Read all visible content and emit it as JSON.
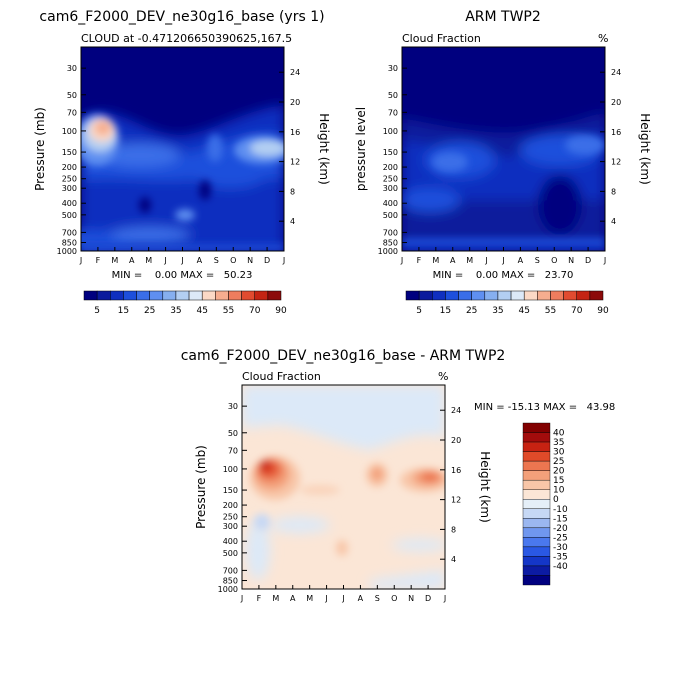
{
  "colors": {
    "seq": [
      "#00007f",
      "#0a1a9c",
      "#0f2fbf",
      "#1d4fdc",
      "#3a6ee8",
      "#5f8ff0",
      "#86afef",
      "#b3cff2",
      "#dce9f8",
      "#fbd9c6",
      "#f6ad8f",
      "#ee7d5e",
      "#e14b30",
      "#c42413",
      "#8c0a0a"
    ],
    "diff": [
      "#00007f",
      "#0c1ba3",
      "#1436c8",
      "#2a58e4",
      "#4a78ee",
      "#7097ef",
      "#9bb7f0",
      "#c6d8f5",
      "#e5eff8",
      "#fbe6d6",
      "#f8c6a8",
      "#f3a07a",
      "#ec7650",
      "#e04a29",
      "#c72212",
      "#a30c0c",
      "#820000"
    ]
  },
  "top_left": {
    "title": "cam6_F2000_DEV_ne30g16_base (yrs 1)",
    "subtitle": "CLOUD at -0.471206650390625,167.5",
    "ylabel_left": "Pressure (mb)",
    "ylabel_right": "Height (km)",
    "minmax": "MIN =    0.00 MAX =   50.23"
  },
  "top_right": {
    "title": "ARM TWP2",
    "subtitle": "Cloud Fraction",
    "units": "%",
    "ylabel_left": "pressure level",
    "ylabel_right": "Height (km)",
    "minmax": "MIN =    0.00 MAX =   23.70"
  },
  "bottom": {
    "title": "cam6_F2000_DEV_ne30g16_base - ARM TWP2",
    "subtitle": "Cloud Fraction",
    "units": "%",
    "ylabel_left": "Pressure (mb)",
    "ylabel_right": "Height (km)",
    "minmax": "MIN = -15.13 MAX =   43.98"
  },
  "chart_data": [
    {
      "type": "heatmap",
      "title": "cam6_F2000_DEV_ne30g16_base (yrs 1)",
      "subtitle": "CLOUD at -0.471206650390625,167.5",
      "xlabel": "",
      "ylabel": "Pressure (mb)",
      "x": [
        "J",
        "F",
        "M",
        "A",
        "M",
        "J",
        "J",
        "A",
        "S",
        "O",
        "N",
        "D",
        "J"
      ],
      "pressure_ticks": [
        30,
        50,
        70,
        100,
        150,
        200,
        250,
        300,
        400,
        500,
        700,
        850,
        1000
      ],
      "height_ticks": [
        4,
        8,
        12,
        16,
        20,
        24
      ],
      "ylim": [
        1000,
        20
      ],
      "levels": [
        5,
        10,
        15,
        20,
        25,
        30,
        35,
        40,
        45,
        50,
        55,
        60,
        70,
        80,
        90
      ],
      "min": 0.0,
      "max": 50.23,
      "features": [
        {
          "month": 1.5,
          "pressure": 110,
          "value": 50
        },
        {
          "month": 9,
          "pressure": 160,
          "value": 14
        },
        {
          "month": 11.2,
          "pressure": 140,
          "value": 30
        }
      ]
    },
    {
      "type": "heatmap",
      "title": "ARM TWP2",
      "subtitle": "Cloud Fraction",
      "ylabel": "pressure level",
      "x": [
        "J",
        "F",
        "M",
        "A",
        "M",
        "J",
        "J",
        "A",
        "S",
        "O",
        "N",
        "D",
        "J"
      ],
      "pressure_ticks": [
        30,
        50,
        70,
        100,
        150,
        200,
        250,
        300,
        400,
        500,
        700,
        850,
        1000
      ],
      "height_ticks": [
        4,
        8,
        12,
        16,
        20,
        24
      ],
      "ylim": [
        1000,
        20
      ],
      "levels": [
        5,
        10,
        15,
        20,
        25,
        30,
        35,
        40,
        45,
        50,
        55,
        60,
        70,
        80,
        90
      ],
      "min": 0.0,
      "max": 23.7,
      "features": [
        {
          "month": 3,
          "pressure": 160,
          "value": 15
        },
        {
          "month": 9.5,
          "pressure": 160,
          "value": 15
        },
        {
          "month": 11.5,
          "pressure": 140,
          "value": 17
        }
      ]
    },
    {
      "type": "heatmap",
      "title": "cam6_F2000_DEV_ne30g16_base - ARM TWP2",
      "subtitle": "Cloud Fraction",
      "ylabel": "Pressure (mb)",
      "x": [
        "J",
        "F",
        "M",
        "A",
        "M",
        "J",
        "J",
        "A",
        "S",
        "O",
        "N",
        "D",
        "J"
      ],
      "pressure_ticks": [
        30,
        50,
        70,
        100,
        150,
        200,
        250,
        300,
        400,
        500,
        700,
        850,
        1000
      ],
      "height_ticks": [
        4,
        8,
        12,
        16,
        20,
        24
      ],
      "ylim": [
        1000,
        20
      ],
      "levels": [
        -40,
        -35,
        -30,
        -25,
        -20,
        -15,
        -10,
        0,
        10,
        15,
        20,
        25,
        30,
        35,
        40
      ],
      "min": -15.13,
      "max": 43.98,
      "features": [
        {
          "month": 1.5,
          "pressure": 110,
          "value": 40
        },
        {
          "month": 8.3,
          "pressure": 130,
          "value": 25
        },
        {
          "month": 11.4,
          "pressure": 130,
          "value": 25
        },
        {
          "month": 7.2,
          "pressure": 530,
          "value": 15
        },
        {
          "month": 1.3,
          "pressure": 290,
          "value": -10
        }
      ]
    }
  ],
  "colorbar_seq": {
    "labels": [
      "5",
      "15",
      "25",
      "35",
      "45",
      "55",
      "70",
      "90"
    ]
  },
  "colorbar_diff": {
    "labels": [
      "40",
      "35",
      "30",
      "25",
      "20",
      "15",
      "10",
      "0",
      "-10",
      "-15",
      "-20",
      "-25",
      "-30",
      "-35",
      "-40"
    ]
  }
}
